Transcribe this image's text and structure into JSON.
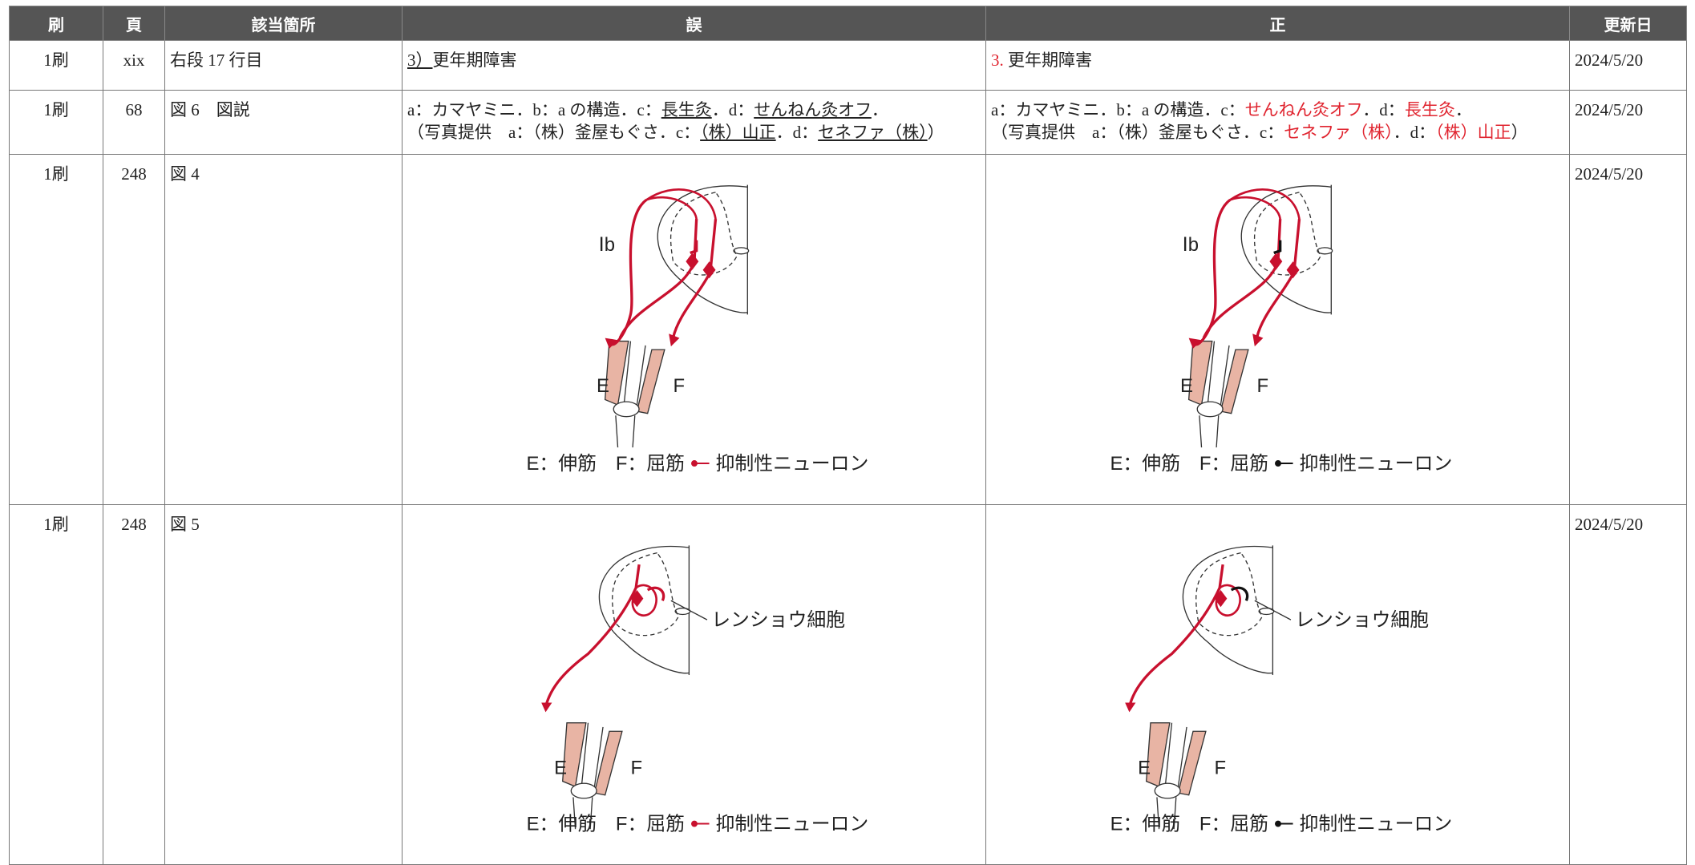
{
  "table": {
    "headers": [
      "刷",
      "頁",
      "該当箇所",
      "誤",
      "正",
      "更新日"
    ],
    "rows": [
      {
        "print": "1刷",
        "page": "xix",
        "location": "右段 17 行目",
        "wrong": [
          [
            {
              "text": "3）",
              "underline": true
            },
            {
              "text": "更年期障害"
            }
          ]
        ],
        "correct": [
          [
            {
              "text": "3.",
              "color": "#e0242f"
            },
            {
              "text": " 更年期障害"
            }
          ]
        ],
        "date": "2024/5/20"
      },
      {
        "print": "1刷",
        "page": "68",
        "location": "図 6　図説",
        "wrong": [
          [
            {
              "text": "a：カマヤミニ．b：a の構造．c："
            },
            {
              "text": "長生灸",
              "underline": true
            },
            {
              "text": "．d："
            },
            {
              "text": "せんねん灸オフ",
              "underline": true
            },
            {
              "text": "．"
            }
          ],
          [
            {
              "text": "（写真提供　a：（株）釜屋もぐさ．c："
            },
            {
              "text": "（株）山正",
              "underline": true
            },
            {
              "text": "．d："
            },
            {
              "text": "セネファ（株）",
              "underline": true
            },
            {
              "text": "）"
            }
          ]
        ],
        "correct": [
          [
            {
              "text": "a：カマヤミニ．b：a の構造．c："
            },
            {
              "text": "せんねん灸オフ",
              "color": "#e0242f"
            },
            {
              "text": "．d："
            },
            {
              "text": "長生灸",
              "color": "#e0242f"
            },
            {
              "text": "．"
            }
          ],
          [
            {
              "text": "（写真提供　a：（株）釜屋もぐさ．c："
            },
            {
              "text": "セネファ（株）",
              "color": "#e0242f"
            },
            {
              "text": "．d："
            },
            {
              "text": "（株）山正",
              "color": "#e0242f"
            },
            {
              "text": "）"
            }
          ]
        ],
        "date": "2024/5/20"
      },
      {
        "print": "1刷",
        "page": "248",
        "location": "図 4",
        "wrong": {
          "figure": 4,
          "ib": "Ⅰb",
          "e": "E",
          "f": "F",
          "legend": "E：伸筋　F：屈筋",
          "neuron": "抑制性ニューロン"
        },
        "correct": {
          "figure": 4,
          "ib": "Ⅰb",
          "e": "E",
          "f": "F",
          "legend": "E：伸筋　F：屈筋",
          "neuron": "抑制性ニューロン"
        },
        "date": "2024/5/20"
      },
      {
        "print": "1刷",
        "page": "248",
        "location": "図 5",
        "wrong": {
          "figure": 5,
          "cell": "レンショウ細胞",
          "e": "E",
          "f": "F",
          "legend": "E：伸筋　F：屈筋",
          "neuron": "抑制性ニューロン"
        },
        "correct": {
          "figure": 5,
          "cell": "レンショウ細胞",
          "e": "E",
          "f": "F",
          "legend": "E：伸筋　F：屈筋",
          "neuron": "抑制性ニューロン"
        },
        "date": "2024/5/20"
      }
    ]
  }
}
